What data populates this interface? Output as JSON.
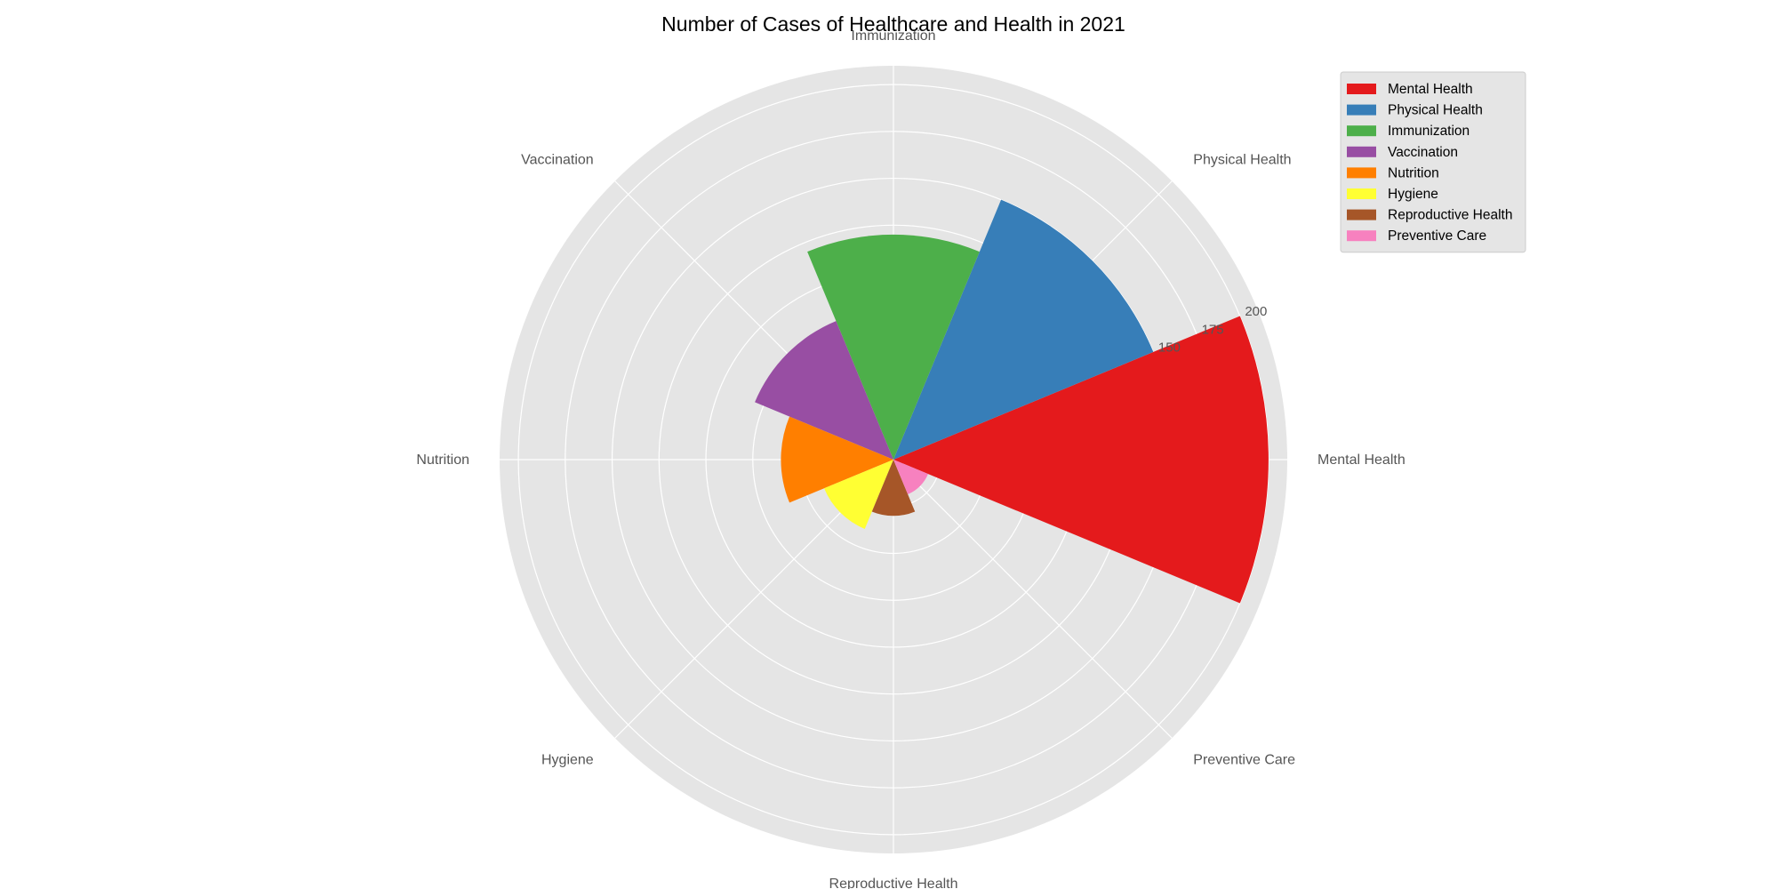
{
  "chart_data": {
    "type": "rose",
    "title": "Number of Cases of Healthcare and Health in 2021",
    "categories": [
      "Mental Health",
      "Physical Health",
      "Immunization",
      "Vaccination",
      "Nutrition",
      "Hygiene",
      "Reproductive Health",
      "Preventive Care"
    ],
    "values": [
      200,
      150,
      120,
      80,
      60,
      40,
      30,
      20
    ],
    "colors": [
      "#e41a1c",
      "#377eb8",
      "#4daf4a",
      "#984ea3",
      "#ff7f00",
      "#ffff33",
      "#a65628",
      "#f781bf"
    ],
    "radial_axis": {
      "range": [
        0,
        210
      ],
      "tick_labels": [
        "150",
        "175",
        "200"
      ]
    },
    "grid": true,
    "legend_position": "top-right",
    "legend": [
      "Mental Health",
      "Physical Health",
      "Immunization",
      "Vaccination",
      "Nutrition",
      "Hygiene",
      "Reproductive Health",
      "Preventive Care"
    ]
  }
}
